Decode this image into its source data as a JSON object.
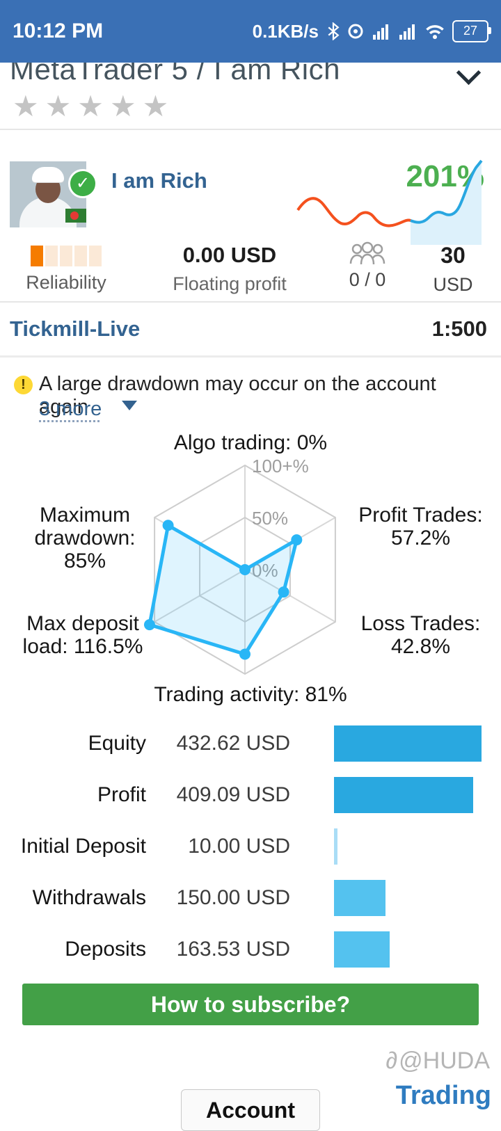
{
  "colors": {
    "status_bar_bg": "#3a70b5",
    "accent_blue": "#29b6f6",
    "brand_blue": "#33628f",
    "growth_green": "#4caf50",
    "button_green": "#43a047",
    "reliability_orange": "#f57c00"
  },
  "status_bar": {
    "time": "10:12 PM",
    "net_speed": "0.1KB/s",
    "battery_percent": "27"
  },
  "header": {
    "title": "MetaTrader 5 / I am Rich"
  },
  "rating": {
    "stars_text": "★★★★★"
  },
  "profile": {
    "name": "I am Rich",
    "growth": "201%"
  },
  "stats": {
    "reliability_label": "Reliability",
    "reliability_level": 1,
    "reliability_max": 5,
    "floating_value": "0.00 USD",
    "floating_label": "Floating profit",
    "subscribers": "0 / 0",
    "price_value": "30",
    "price_unit": "USD"
  },
  "account": {
    "broker": "Tickmill-Live",
    "leverage": "1:500"
  },
  "warning": {
    "text": "A large drawdown may occur on the account again",
    "more_link": "3 more"
  },
  "chart_data": [
    {
      "type": "radar",
      "axes": [
        {
          "label": "Algo trading: 0%",
          "value": 0
        },
        {
          "label": "Profit Trades:\n57.2%",
          "value": 57.2
        },
        {
          "label": "Loss Trades:\n42.8%",
          "value": 42.8
        },
        {
          "label": "Trading activity: 81%",
          "value": 81
        },
        {
          "label": "Max deposit\nload: 116.5%",
          "value": 116.5
        },
        {
          "label": "Maximum\ndrawdown:\n85%",
          "value": 85
        }
      ],
      "rings": [
        {
          "label": "0%",
          "value": 0
        },
        {
          "label": "50%",
          "value": 50
        },
        {
          "label": "100+%",
          "value": 100
        }
      ],
      "scale_max": 100,
      "stroke": "#29b6f6",
      "fill": "rgba(41,182,246,0.15)"
    },
    {
      "type": "bar",
      "orientation": "horizontal",
      "max": 432.62,
      "rows": [
        {
          "label": "Equity",
          "value_text": "432.62 USD",
          "value": 432.62,
          "color": "#29a8e0"
        },
        {
          "label": "Profit",
          "value_text": "409.09 USD",
          "value": 409.09,
          "color": "#29a8e0"
        },
        {
          "label": "Initial Deposit",
          "value_text": "10.00 USD",
          "value": 10.0,
          "color": "#a9ddf6"
        },
        {
          "label": "Withdrawals",
          "value_text": "150.00 USD",
          "value": 150.0,
          "color": "#54c2ef"
        },
        {
          "label": "Deposits",
          "value_text": "163.53 USD",
          "value": 163.53,
          "color": "#54c2ef"
        }
      ]
    }
  ],
  "subscribe_button": "How to subscribe?",
  "watermark": {
    "icon": "∂",
    "handle": "@HUDA",
    "brand": "Trading"
  },
  "footer": {
    "account_button": "Account"
  }
}
